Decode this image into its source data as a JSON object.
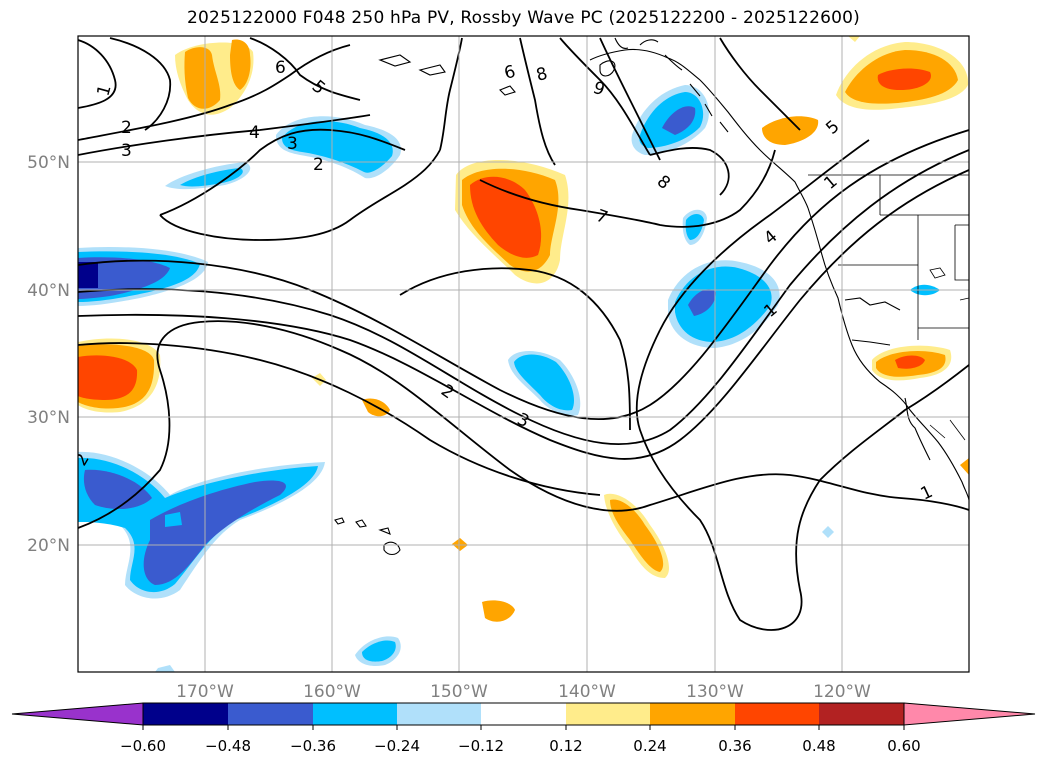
{
  "title": "2025122000 F048 250 hPa PV, Rossby Wave PC (2025122200 - 2025122600)",
  "latitude_labels": [
    "50°N",
    "40°N",
    "30°N",
    "20°N"
  ],
  "longitude_labels": [
    "170°W",
    "160°W",
    "150°W",
    "140°W",
    "130°W",
    "120°W"
  ],
  "contour_labels": [
    "1",
    "2",
    "3",
    "4",
    "5",
    "6",
    "7",
    "8",
    "9"
  ],
  "colorbar": {
    "ticks": [
      "−0.60",
      "−0.48",
      "−0.36",
      "−0.24",
      "−0.12",
      "0.12",
      "0.24",
      "0.36",
      "0.48",
      "0.60"
    ],
    "colors": [
      "#9932cc",
      "#00008b",
      "#3a5bcf",
      "#00bfff",
      "#b0e0fa",
      "#ffffff",
      "#ffec8b",
      "#ffa500",
      "#ff4500",
      "#b22222",
      "#ff88aa"
    ]
  },
  "colors": {
    "negative_strong": "#3a5bcf",
    "negative_mid": "#00bfff",
    "negative_weak": "#b0e0fa",
    "positive_weak": "#ffec8b",
    "positive_mid": "#ffa500",
    "positive_strong": "#ff4500",
    "grid": "#b0b0b0",
    "axis_label": "#808080"
  }
}
